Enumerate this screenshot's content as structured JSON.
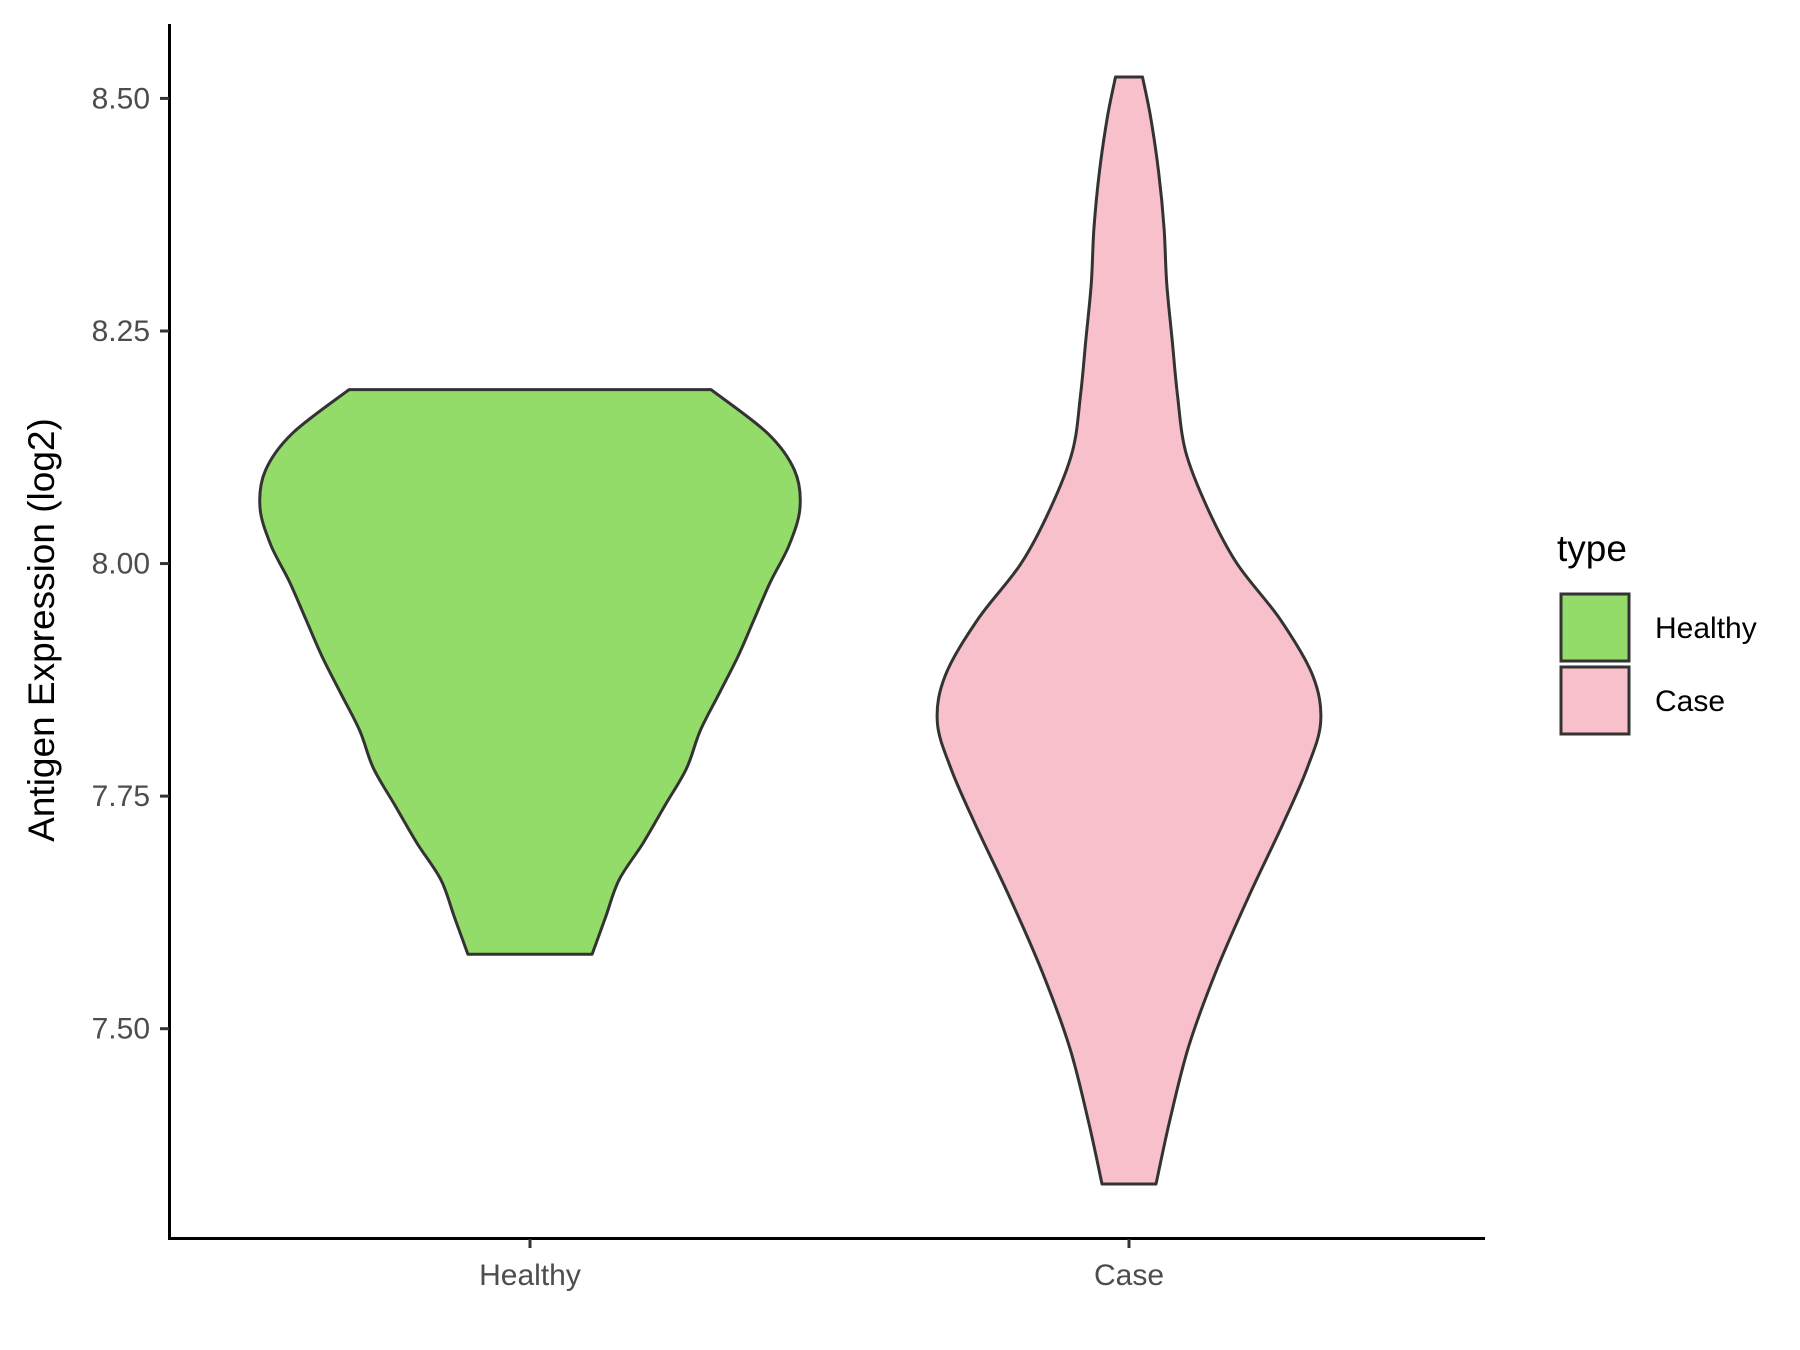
{
  "chart_data": {
    "type": "violin",
    "xlabel": "",
    "ylabel": "Antigen Expression (log2)",
    "ylim": [
      7.275,
      8.58
    ],
    "yticks": [
      7.5,
      7.75,
      8.0,
      8.25,
      8.5
    ],
    "ytick_labels": [
      "7.50",
      "7.75",
      "8.00",
      "8.25",
      "8.50"
    ],
    "categories": [
      "Healthy",
      "Case"
    ],
    "grid": false,
    "legend": {
      "title": "type",
      "position": "right",
      "entries": [
        {
          "label": "Healthy",
          "color": "#93DC6A"
        },
        {
          "label": "Case",
          "color": "#F7C0CB"
        }
      ]
    },
    "series": [
      {
        "category": "Healthy",
        "color": "#93DC6A",
        "min": 7.58,
        "max": 8.187,
        "density": [
          [
            7.58,
            0.23
          ],
          [
            7.62,
            0.28
          ],
          [
            7.66,
            0.33
          ],
          [
            7.7,
            0.42
          ],
          [
            7.74,
            0.5
          ],
          [
            7.78,
            0.58
          ],
          [
            7.82,
            0.63
          ],
          [
            7.86,
            0.7
          ],
          [
            7.9,
            0.77
          ],
          [
            7.94,
            0.83
          ],
          [
            7.98,
            0.89
          ],
          [
            8.02,
            0.96
          ],
          [
            8.06,
            1.0
          ],
          [
            8.1,
            0.98
          ],
          [
            8.14,
            0.88
          ],
          [
            8.187,
            0.67
          ]
        ]
      },
      {
        "category": "Case",
        "color": "#F7C0CB",
        "min": 7.333,
        "max": 8.523,
        "density": [
          [
            7.333,
            0.1
          ],
          [
            7.4,
            0.15
          ],
          [
            7.48,
            0.22
          ],
          [
            7.56,
            0.32
          ],
          [
            7.64,
            0.44
          ],
          [
            7.72,
            0.57
          ],
          [
            7.78,
            0.66
          ],
          [
            7.83,
            0.71
          ],
          [
            7.88,
            0.68
          ],
          [
            7.94,
            0.56
          ],
          [
            8.0,
            0.4
          ],
          [
            8.06,
            0.29
          ],
          [
            8.12,
            0.21
          ],
          [
            8.18,
            0.18
          ],
          [
            8.24,
            0.16
          ],
          [
            8.3,
            0.14
          ],
          [
            8.36,
            0.13
          ],
          [
            8.42,
            0.11
          ],
          [
            8.48,
            0.08
          ],
          [
            8.523,
            0.05
          ]
        ]
      }
    ]
  }
}
